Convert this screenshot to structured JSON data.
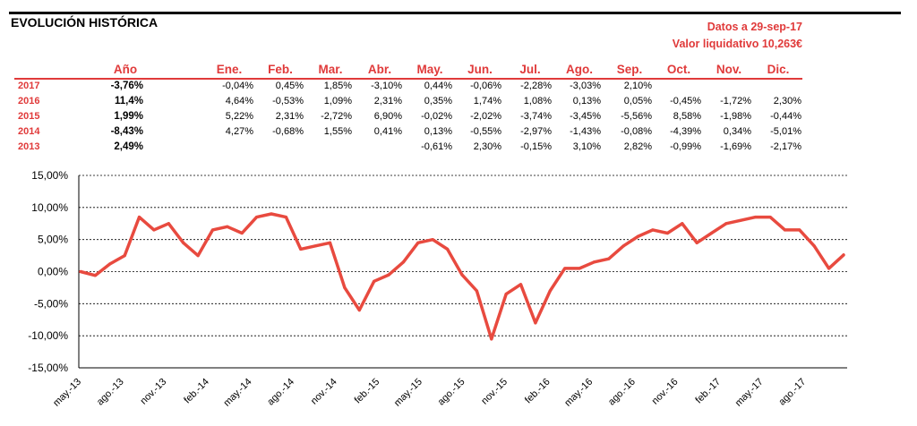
{
  "header": {
    "title": "EVOLUCIÓN HISTÓRICA",
    "date_line": "Datos a 29-sep-17",
    "nav_line": "Valor liquidativo 10,263€"
  },
  "returns_table": {
    "columns": [
      "Año",
      "Ene.",
      "Feb.",
      "Mar.",
      "Abr.",
      "May.",
      "Jun.",
      "Jul.",
      "Ago.",
      "Sep.",
      "Oct.",
      "Nov.",
      "Dic."
    ],
    "rows": [
      {
        "year": "2017",
        "total": "-3,76%",
        "months": [
          "-0,04%",
          "0,45%",
          "1,85%",
          "-3,10%",
          "0,44%",
          "-0,06%",
          "-2,28%",
          "-3,03%",
          "2,10%",
          "",
          "",
          ""
        ]
      },
      {
        "year": "2016",
        "total": "11,4%",
        "months": [
          "4,64%",
          "-0,53%",
          "1,09%",
          "2,31%",
          "0,35%",
          "1,74%",
          "1,08%",
          "0,13%",
          "0,05%",
          "-0,45%",
          "-1,72%",
          "2,30%"
        ]
      },
      {
        "year": "2015",
        "total": "1,99%",
        "months": [
          "5,22%",
          "2,31%",
          "-2,72%",
          "6,90%",
          "-0,02%",
          "-2,02%",
          "-3,74%",
          "-3,45%",
          "-5,56%",
          "8,58%",
          "-1,98%",
          "-0,44%"
        ]
      },
      {
        "year": "2014",
        "total": "-8,43%",
        "months": [
          "4,27%",
          "-0,68%",
          "1,55%",
          "0,41%",
          "0,13%",
          "-0,55%",
          "-2,97%",
          "-1,43%",
          "-0,08%",
          "-4,39%",
          "0,34%",
          "-5,01%"
        ]
      },
      {
        "year": "2013",
        "total": "2,49%",
        "months": [
          "",
          "",
          "",
          "",
          "-0,61%",
          "2,30%",
          "-0,15%",
          "3,10%",
          "2,82%",
          "-0,99%",
          "-1,69%",
          "-2,17%"
        ]
      }
    ]
  },
  "colors": {
    "accent": "#e03a3a",
    "line": "#e84a3f",
    "text": "#000000",
    "grid": "#000000"
  },
  "chart_data": {
    "type": "line",
    "title": "",
    "xlabel": "",
    "ylabel": "",
    "ylim": [
      -15,
      15
    ],
    "yticks": [
      -15,
      -10,
      -5,
      0,
      5,
      10,
      15
    ],
    "ytick_labels": [
      "-15,00%",
      "-10,00%",
      "-5,00%",
      "0,00%",
      "5,00%",
      "10,00%",
      "15,00%"
    ],
    "xtick_labels": [
      "may.-13",
      "ago.-13",
      "nov.-13",
      "feb.-14",
      "may.-14",
      "ago.-14",
      "nov.-14",
      "feb.-15",
      "may.-15",
      "ago.-15",
      "nov.-15",
      "feb.-16",
      "may.-16",
      "ago.-16",
      "nov.-16",
      "feb.-17",
      "may.-17",
      "ago.-17"
    ],
    "grid": "horizontal dashed",
    "x": [
      "may.-13",
      "jun.-13",
      "jul.-13",
      "ago.-13",
      "sep.-13",
      "oct.-13",
      "nov.-13",
      "dic.-13",
      "ene.-14",
      "feb.-14",
      "mar.-14",
      "abr.-14",
      "may.-14",
      "jun.-14",
      "jul.-14",
      "ago.-14",
      "sep.-14",
      "oct.-14",
      "nov.-14",
      "dic.-14",
      "ene.-15",
      "feb.-15",
      "mar.-15",
      "abr.-15",
      "may.-15",
      "jun.-15",
      "jul.-15",
      "ago.-15",
      "sep.-15",
      "oct.-15",
      "nov.-15",
      "dic.-15",
      "ene.-16",
      "feb.-16",
      "mar.-16",
      "abr.-16",
      "may.-16",
      "jun.-16",
      "jul.-16",
      "ago.-16",
      "sep.-16",
      "oct.-16",
      "nov.-16",
      "dic.-16",
      "ene.-17",
      "feb.-17",
      "mar.-17",
      "abr.-17",
      "may.-17",
      "jun.-17",
      "jul.-17",
      "ago.-17",
      "sep.-17"
    ],
    "series": [
      {
        "values": [
          0.0,
          -0.6,
          1.2,
          2.5,
          8.5,
          6.5,
          7.5,
          4.5,
          2.5,
          6.5,
          7.0,
          6.0,
          8.5,
          9.0,
          8.5,
          3.5,
          4.0,
          4.5,
          -2.5,
          -6.0,
          -1.5,
          -0.5,
          1.5,
          4.5,
          5.0,
          3.5,
          -0.5,
          -3.0,
          -10.5,
          -3.5,
          -2.0,
          -8.0,
          -3.0,
          0.5,
          0.5,
          1.5,
          2.0,
          4.0,
          5.5,
          6.5,
          6.0,
          7.5,
          4.5,
          6.0,
          7.5,
          8.0,
          8.5,
          8.5,
          6.5,
          6.5,
          4.0,
          0.5,
          2.6
        ]
      }
    ]
  }
}
